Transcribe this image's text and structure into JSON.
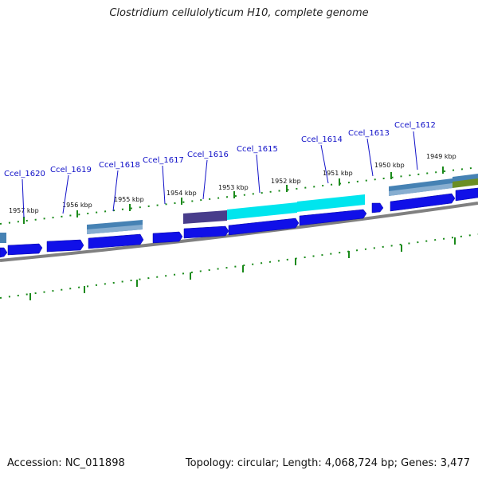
{
  "title": "Clostridium cellulolyticum H10, complete genome",
  "footer": {
    "accession": "Accession: NC_011898",
    "summary": "Topology: circular; Length: 4,068,724 bp; Genes: 3,477"
  },
  "colors": {
    "gene_arrow": "#1010e8",
    "tick": "#1a8a1a",
    "backbone": "#808080",
    "steelblue": "#4682b4",
    "darkslateblue": "#483d8b",
    "cyan": "#00e5ee",
    "olive": "#6b8e23",
    "label": "#1010c8"
  },
  "scale_labels": [
    "1957 kbp",
    "1956 kbp",
    "1955 kbp",
    "1954 kbp",
    "1953 kbp",
    "1952 kbp",
    "1951 kbp",
    "1950 kbp",
    "1949 kbp"
  ],
  "gene_labels": [
    "Ccel_1620",
    "Ccel_1619",
    "Ccel_1618",
    "Ccel_1617",
    "Ccel_1616",
    "Ccel_1615",
    "Ccel_1614",
    "Ccel_1613",
    "Ccel_1612"
  ]
}
